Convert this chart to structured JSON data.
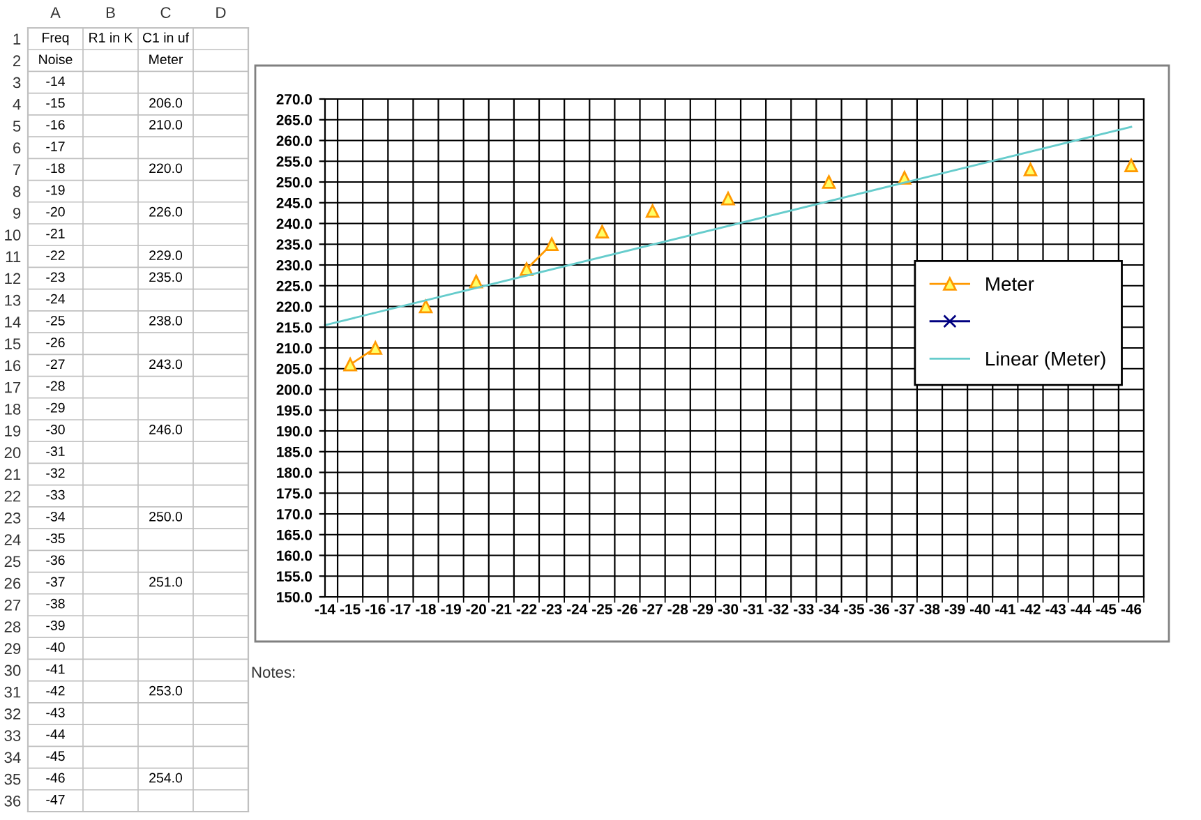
{
  "chart_data": [
    {
      "type": "heatmap",
      "categories": [
        "A",
        "B",
        "C",
        "D"
      ],
      "y_categories": [
        "1",
        "2",
        "3",
        "4",
        "5",
        "6",
        "7",
        "8",
        "9",
        "10",
        "11",
        "12",
        "13",
        "14",
        "15",
        "16",
        "17",
        "18",
        "19",
        "20",
        "21",
        "22",
        "23",
        "24",
        "25",
        "26",
        "27",
        "28",
        "29",
        "30",
        "31",
        "32",
        "33",
        "34",
        "35",
        "36"
      ],
      "cells": [
        [
          null,
          null,
          null,
          null
        ],
        [
          null,
          null,
          null,
          null
        ],
        [
          null,
          null,
          null,
          null
        ],
        [
          null,
          null,
          null,
          null
        ],
        [
          null,
          null,
          null,
          null
        ],
        [
          null,
          null,
          null,
          null
        ],
        [
          null,
          null,
          null,
          null
        ],
        [
          null,
          null,
          null,
          null
        ],
        [
          null,
          null,
          null,
          null
        ],
        [
          null,
          null,
          null,
          null
        ],
        [
          null,
          null,
          null,
          null
        ],
        [
          null,
          null,
          null,
          null
        ],
        [
          null,
          null,
          null,
          null
        ],
        [
          null,
          null,
          null,
          null
        ],
        [
          null,
          null,
          null,
          null
        ],
        [
          null,
          null,
          null,
          null
        ],
        [
          null,
          null,
          null,
          null
        ],
        [
          null,
          null,
          null,
          null
        ],
        [
          null,
          null,
          null,
          null
        ],
        [
          null,
          null,
          null,
          null
        ],
        [
          null,
          null,
          null,
          null
        ],
        [
          null,
          null,
          null,
          null
        ],
        [
          null,
          null,
          null,
          null
        ],
        [
          null,
          null,
          null,
          null
        ],
        [
          null,
          null,
          null,
          null
        ],
        [
          null,
          null,
          null,
          null
        ],
        [
          null,
          null,
          null,
          null
        ],
        [
          null,
          null,
          null,
          null
        ],
        [
          null,
          null,
          null,
          null
        ],
        [
          null,
          null,
          null,
          null
        ],
        [
          null,
          null,
          null,
          null
        ],
        [
          null,
          null,
          null,
          null
        ],
        [
          null,
          null,
          null,
          null
        ],
        [
          null,
          null,
          null,
          null
        ],
        [
          null,
          null,
          null,
          null
        ],
        [
          null,
          null,
          null,
          null
        ]
      ],
      "cell_labels": [
        [
          "Freq",
          "R1 in K",
          "C1 in uf",
          null
        ],
        [
          "Noise",
          null,
          "Meter",
          null
        ],
        [
          "-14",
          null,
          null,
          null
        ],
        [
          "-15",
          null,
          "206.0",
          null
        ],
        [
          "-16",
          null,
          "210.0",
          null
        ],
        [
          "-17",
          null,
          null,
          null
        ],
        [
          "-18",
          null,
          "220.0",
          null
        ],
        [
          "-19",
          null,
          null,
          null
        ],
        [
          "-20",
          null,
          "226.0",
          null
        ],
        [
          "-21",
          null,
          null,
          null
        ],
        [
          "-22",
          null,
          "229.0",
          null
        ],
        [
          "-23",
          null,
          "235.0",
          null
        ],
        [
          "-24",
          null,
          null,
          null
        ],
        [
          "-25",
          null,
          "238.0",
          null
        ],
        [
          "-26",
          null,
          null,
          null
        ],
        [
          "-27",
          null,
          "243.0",
          null
        ],
        [
          "-28",
          null,
          null,
          null
        ],
        [
          "-29",
          null,
          null,
          null
        ],
        [
          "-30",
          null,
          "246.0",
          null
        ],
        [
          "-31",
          null,
          null,
          null
        ],
        [
          "-32",
          null,
          null,
          null
        ],
        [
          "-33",
          null,
          null,
          null
        ],
        [
          "-34",
          null,
          "250.0",
          null
        ],
        [
          "-35",
          null,
          null,
          null
        ],
        [
          "-36",
          null,
          null,
          null
        ],
        [
          "-37",
          null,
          "251.0",
          null
        ],
        [
          "-38",
          null,
          null,
          null
        ],
        [
          "-39",
          null,
          null,
          null
        ],
        [
          "-40",
          null,
          null,
          null
        ],
        [
          "-41",
          null,
          null,
          null
        ],
        [
          "-42",
          null,
          "253.0",
          null
        ],
        [
          "-43",
          null,
          null,
          null
        ],
        [
          "-44",
          null,
          null,
          null
        ],
        [
          "-45",
          null,
          null,
          null
        ],
        [
          "-46",
          null,
          "254.0",
          null
        ],
        [
          "-47",
          null,
          null,
          null
        ]
      ]
    },
    {
      "type": "line",
      "categories": [
        "-14",
        "-15",
        "-16",
        "-17",
        "-18",
        "-19",
        "-20",
        "-21",
        "-22",
        "-23",
        "-24",
        "-25",
        "-26",
        "-27",
        "-28",
        "-29",
        "-30",
        "-31",
        "-32",
        "-33",
        "-34",
        "-35",
        "-36",
        "-37",
        "-38",
        "-39",
        "-40",
        "-41",
        "-42",
        "-43",
        "-44",
        "-45",
        "-46"
      ],
      "series": [
        {
          "name": "Meter",
          "color": "#ff9900",
          "type": "line",
          "marker": "triangle",
          "values": [
            null,
            206,
            210,
            null,
            220,
            null,
            226,
            null,
            229,
            235,
            null,
            238,
            null,
            243,
            null,
            null,
            246,
            null,
            null,
            null,
            250,
            null,
            null,
            251,
            null,
            null,
            null,
            null,
            253,
            null,
            null,
            null,
            254
          ]
        },
        {
          "color": "#000080",
          "type": "line",
          "marker": "cross",
          "values": [
            null,
            null,
            null,
            null,
            null,
            null,
            null,
            null,
            null,
            null,
            null,
            null,
            null,
            null,
            null,
            null,
            null,
            null,
            null,
            null,
            null,
            null,
            null,
            null,
            null,
            null,
            null,
            null,
            null,
            null,
            null,
            null,
            null
          ]
        },
        {
          "name": "Linear (Meter)",
          "color": "#66cccc",
          "type": "line",
          "marker": "none",
          "x": [
            "-14",
            "-46"
          ],
          "values": [
            215.5,
            263.3
          ]
        }
      ],
      "ylim": [
        150,
        270
      ],
      "yticks": [
        {
          "value": 150,
          "label": "150.0"
        },
        {
          "value": 155,
          "label": "155.0"
        },
        {
          "value": 160,
          "label": "160.0"
        },
        {
          "value": 165,
          "label": "165.0"
        },
        {
          "value": 170,
          "label": "170.0"
        },
        {
          "value": 175,
          "label": "175.0"
        },
        {
          "value": 180,
          "label": "180.0"
        },
        {
          "value": 185,
          "label": "185.0"
        },
        {
          "value": 190,
          "label": "190.0"
        },
        {
          "value": 195,
          "label": "195.0"
        },
        {
          "value": 200,
          "label": "200.0"
        },
        {
          "value": 205,
          "label": "205.0"
        },
        {
          "value": 210,
          "label": "210.0"
        },
        {
          "value": 215,
          "label": "215.0"
        },
        {
          "value": 220,
          "label": "220.0"
        },
        {
          "value": 225,
          "label": "225.0"
        },
        {
          "value": 230,
          "label": "230.0"
        },
        {
          "value": 235,
          "label": "235.0"
        },
        {
          "value": 240,
          "label": "240.0"
        },
        {
          "value": 245,
          "label": "245.0"
        },
        {
          "value": 250,
          "label": "250.0"
        },
        {
          "value": 255,
          "label": "255.0"
        },
        {
          "value": 260,
          "label": "260.0"
        },
        {
          "value": 265,
          "label": "265.0"
        },
        {
          "value": 270,
          "label": "270.0"
        }
      ],
      "grid": true,
      "legend": "right",
      "annotations": [
        "Notes:"
      ]
    }
  ]
}
